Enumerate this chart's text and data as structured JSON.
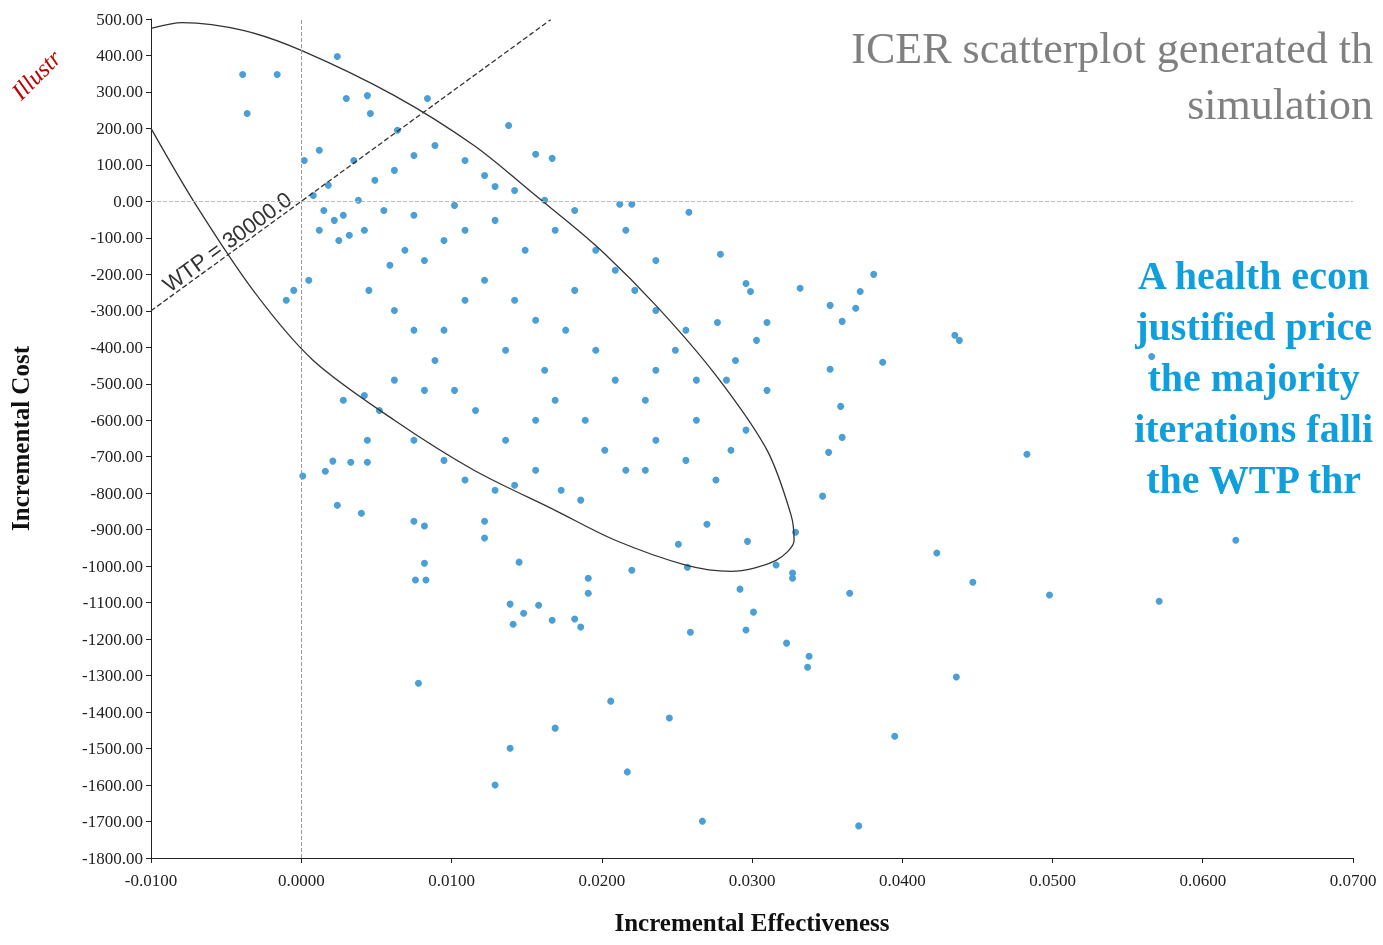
{
  "chart_data": {
    "type": "scatter",
    "title": "ICER scatterplot generated th\nsimulation",
    "xlabel": "Incremental Effectiveness",
    "ylabel": "Incremental Cost",
    "annotations": [
      "A health econ\njustified price\nthe majority\niterations falli\nthe WTP thr",
      "Illustr",
      {
        "text": "WTP = 30000.0",
        "x": -0.0045,
        "y": -135
      }
    ],
    "xlim": [
      -0.01,
      0.07
    ],
    "xticks": [
      {
        "value": -0.01,
        "label": "-0.0100"
      },
      {
        "value": 0,
        "label": "0.0000"
      },
      {
        "value": 0.01,
        "label": "0.0100"
      },
      {
        "value": 0.02,
        "label": "0.0200"
      },
      {
        "value": 0.03,
        "label": "0.0300"
      },
      {
        "value": 0.04,
        "label": "0.0400"
      },
      {
        "value": 0.05,
        "label": "0.0500"
      },
      {
        "value": 0.06,
        "label": "0.0600"
      },
      {
        "value": 0.07,
        "label": "0.0700"
      }
    ],
    "ylim": [
      -1800,
      500
    ],
    "yticks": [
      {
        "value": 500,
        "label": "500.00"
      },
      {
        "value": 400,
        "label": "400.00"
      },
      {
        "value": 300,
        "label": "300.00"
      },
      {
        "value": 200,
        "label": "200.00"
      },
      {
        "value": 100,
        "label": "100.00"
      },
      {
        "value": 0,
        "label": "0.00"
      },
      {
        "value": -100,
        "label": "-100.00"
      },
      {
        "value": -200,
        "label": "-200.00"
      },
      {
        "value": -300,
        "label": "-300.00"
      },
      {
        "value": -400,
        "label": "-400.00"
      },
      {
        "value": -500,
        "label": "-500.00"
      },
      {
        "value": -600,
        "label": "-600.00"
      },
      {
        "value": -700,
        "label": "-700.00"
      },
      {
        "value": -800,
        "label": "-800.00"
      },
      {
        "value": -900,
        "label": "-900.00"
      },
      {
        "value": -1000,
        "label": "-1000.00"
      },
      {
        "value": -1100,
        "label": "-1100.00"
      },
      {
        "value": -1200,
        "label": "-1200.00"
      },
      {
        "value": -1300,
        "label": "-1300.00"
      },
      {
        "value": -1400,
        "label": "-1400.00"
      },
      {
        "value": -1500,
        "label": "-1500.00"
      },
      {
        "value": -1600,
        "label": "-1600.00"
      },
      {
        "value": -1700,
        "label": "-1700.00"
      },
      {
        "value": -1800,
        "label": "-1800.00"
      }
    ],
    "grid": false,
    "marker": "circle",
    "ref_lines": [
      {
        "axis": "x",
        "value": 0,
        "color": "#999999",
        "line_style": "dashed"
      },
      {
        "axis": "y",
        "value": 0,
        "color": "#bbbbbb",
        "line_style": "dashed"
      }
    ],
    "series": [
      {
        "color": "#4a9fd6",
        "x": [
          -0.0039,
          -0.0016,
          -0.0036,
          0.0024,
          0.0084,
          0.0138,
          0.0156,
          0.0167,
          0.0212,
          0.022,
          0.0258,
          0.0279,
          0.0296,
          0.0299,
          0.0332,
          0.0372,
          0.0381,
          0.0369,
          0.0352,
          0.036,
          0.031,
          0.0277,
          0.0435,
          0.0438,
          0.0387,
          0.0566,
          0.0352,
          0.0359,
          0.036,
          0.0351,
          0.0483,
          0.0347,
          0.0329,
          0.0622,
          0.0423,
          0.0447,
          0.0498,
          0.0571,
          0.0365,
          0.0436,
          0.0395,
          0.0267,
          0.0371,
          0.0129,
          0.0217,
          0.0169,
          0.0139,
          0.0245,
          0.0206,
          0.0078,
          0.0337,
          0.0338,
          0.0323,
          0.0301,
          0.0296,
          0.0259,
          0.0186,
          0.0182,
          0.0158,
          0.0148,
          0.0139,
          0.0141,
          0.0167,
          0.0191,
          0.0191,
          0.022,
          0.0145,
          0.0076,
          0.0083,
          0.0082,
          0.0251,
          0.0257,
          0.0292,
          0.0316,
          0.0327,
          0.0327,
          0.0297,
          0.027,
          0.0122,
          0.0122,
          0.0075,
          0.0082,
          0.0024,
          0.004,
          0.0021,
          0.0033,
          0.0044,
          0.0001,
          0.0016,
          0.0008,
          0.0015,
          0.0022,
          0.0028,
          0.0018,
          0.0025,
          0.0032,
          0.0012,
          0.0038,
          0.0042,
          0.0049,
          0.0055,
          0.0002,
          0.0012,
          0.0035,
          0.0062,
          0.0075,
          0.0069,
          -0.0005,
          -0.001,
          0.0005,
          0.003,
          0.0044,
          0.0046,
          0.0064,
          0.0075,
          0.0089,
          0.0109,
          0.0122,
          0.0129,
          0.0142,
          0.0102,
          0.0109,
          0.0129,
          0.0095,
          0.0082,
          0.0059,
          0.0045,
          0.0062,
          0.0075,
          0.0089,
          0.0102,
          0.0116,
          0.0082,
          0.0062,
          0.0042,
          0.0028,
          0.0052,
          0.0044,
          0.0075,
          0.0095,
          0.0109,
          0.0129,
          0.0142,
          0.0156,
          0.0173,
          0.0186,
          0.0136,
          0.0156,
          0.0169,
          0.0189,
          0.0202,
          0.0216,
          0.0229,
          0.0236,
          0.0256,
          0.0276,
          0.0263,
          0.0229,
          0.0209,
          0.0196,
          0.0176,
          0.0156,
          0.0142,
          0.0122,
          0.0109,
          0.0095,
          0.0136,
          0.0162,
          0.0182,
          0.0196,
          0.0209,
          0.0222,
          0.0236,
          0.0249,
          0.0263,
          0.0283,
          0.0289,
          0.0256,
          0.0236,
          0.0216,
          0.0169,
          0.0162,
          0.0182,
          0.0149,
          0.0236,
          0.0303,
          0.031,
          0.0296,
          0.0286
        ],
        "values": [
          348,
          348,
          241,
          397,
          282,
          208,
          129,
          118,
          -8,
          -8,
          -30,
          -145,
          -225,
          -247,
          -238,
          -247,
          -200,
          -293,
          -285,
          -329,
          -332,
          -332,
          -367,
          -381,
          -441,
          -425,
          -460,
          -562,
          -647,
          -688,
          -693,
          -808,
          -907,
          -929,
          -964,
          -1044,
          -1079,
          -1096,
          -1074,
          -1304,
          -1466,
          -1699,
          -1712,
          -1600,
          -1564,
          -1444,
          -1499,
          -1416,
          -1370,
          -1321,
          -1277,
          -1247,
          -1211,
          -1126,
          -1175,
          -1181,
          -1167,
          -1145,
          -1107,
          -1129,
          -1104,
          -1159,
          -1148,
          -1033,
          -1074,
          -1011,
          -989,
          -1038,
          -1038,
          -992,
          -940,
          -1003,
          -1063,
          -997,
          -1033,
          -1019,
          -932,
          -885,
          -877,
          -923,
          -877,
          -890,
          -833,
          -855,
          -712,
          -715,
          -715,
          -753,
          -740,
          16,
          -25,
          -52,
          -38,
          44,
          -107,
          -93,
          -79,
          3,
          -79,
          58,
          -25,
          112,
          140,
          112,
          85,
          -38,
          -134,
          -244,
          -271,
          -216,
          282,
          290,
          241,
          195,
          126,
          153,
          112,
          71,
          41,
          30,
          -11,
          -79,
          -52,
          -107,
          -162,
          -175,
          -244,
          -299,
          -353,
          -436,
          -518,
          -573,
          -518,
          -490,
          -532,
          -545,
          -573,
          -655,
          -655,
          -710,
          -764,
          -792,
          -778,
          -737,
          -792,
          -819,
          -655,
          -600,
          -545,
          -600,
          -682,
          -737,
          -737,
          -655,
          -710,
          -764,
          -600,
          -545,
          -490,
          -408,
          -353,
          -326,
          -271,
          -216,
          -271,
          -353,
          -408,
          -463,
          -244,
          -134,
          -189,
          -244,
          -299,
          -408,
          -490,
          -490,
          -436,
          -353,
          -162,
          -79,
          -79,
          3,
          -25,
          -134,
          -463,
          -381,
          -518,
          -627,
          -682
        ]
      },
      {
        "type": "line",
        "color": "#333333",
        "marker": "none",
        "line_style": "solid",
        "x": [
          -0.01,
          -0.0079,
          -0.0038,
          0,
          0.0062,
          0.0115,
          0.0156,
          0.0196,
          0.0236,
          0.0276,
          0.031,
          0.0326,
          0.0328,
          0.0316,
          0.0286,
          0.0256,
          0.0209,
          0.0169,
          0.0115,
          0.0062,
          0.0008,
          -0.0032,
          -0.0072,
          -0.01
        ],
        "values": [
          474,
          490,
          468,
          414,
          290,
          153,
          16,
          -121,
          -285,
          -477,
          -682,
          -860,
          -929,
          -984,
          -1014,
          -997,
          -929,
          -847,
          -737,
          -600,
          -436,
          -244,
          3,
          200
        ]
      },
      {
        "type": "line",
        "color": "#333333",
        "marker": "none",
        "line_style": "dashed",
        "x": [
          -0.01,
          0.0166
        ],
        "values": [
          -300,
          498
        ]
      }
    ]
  }
}
